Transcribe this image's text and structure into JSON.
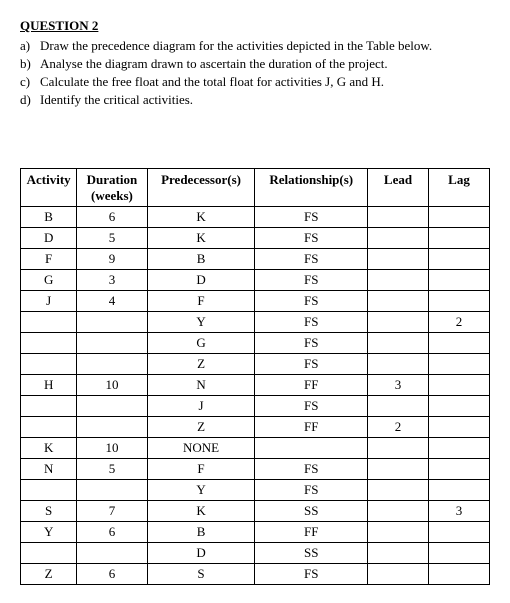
{
  "question": {
    "title": "QUESTION 2",
    "items": [
      {
        "letter": "a)",
        "text": "Draw the precedence diagram for the activities depicted in the Table below."
      },
      {
        "letter": "b)",
        "text": "Analyse the diagram drawn to ascertain the duration of the project."
      },
      {
        "letter": "c)",
        "text": "Calculate the free float and the total float for activities J, G and H."
      },
      {
        "letter": "d)",
        "text": "Identify the critical activities."
      }
    ]
  },
  "table": {
    "headers": {
      "activity": "Activity",
      "duration": "Duration (weeks)",
      "predecessor": "Predecessor(s)",
      "relationship": "Relationship(s)",
      "lead": "Lead",
      "lag": "Lag"
    },
    "rows": [
      {
        "activity": "B",
        "duration": "6",
        "predecessor": "K",
        "relationship": "FS",
        "lead": "",
        "lag": ""
      },
      {
        "activity": "D",
        "duration": "5",
        "predecessor": "K",
        "relationship": "FS",
        "lead": "",
        "lag": ""
      },
      {
        "activity": "F",
        "duration": "9",
        "predecessor": "B",
        "relationship": "FS",
        "lead": "",
        "lag": ""
      },
      {
        "activity": "G",
        "duration": "3",
        "predecessor": "D",
        "relationship": "FS",
        "lead": "",
        "lag": ""
      },
      {
        "activity": "J",
        "duration": "4",
        "predecessor": "F",
        "relationship": "FS",
        "lead": "",
        "lag": ""
      },
      {
        "activity": "",
        "duration": "",
        "predecessor": "Y",
        "relationship": "FS",
        "lead": "",
        "lag": "2"
      },
      {
        "activity": "",
        "duration": "",
        "predecessor": "G",
        "relationship": "FS",
        "lead": "",
        "lag": ""
      },
      {
        "activity": "",
        "duration": "",
        "predecessor": "Z",
        "relationship": "FS",
        "lead": "",
        "lag": ""
      },
      {
        "activity": "H",
        "duration": "10",
        "predecessor": "N",
        "relationship": "FF",
        "lead": "3",
        "lag": ""
      },
      {
        "activity": "",
        "duration": "",
        "predecessor": "J",
        "relationship": "FS",
        "lead": "",
        "lag": ""
      },
      {
        "activity": "",
        "duration": "",
        "predecessor": "Z",
        "relationship": "FF",
        "lead": "2",
        "lag": ""
      },
      {
        "activity": "K",
        "duration": "10",
        "predecessor": "NONE",
        "relationship": "",
        "lead": "",
        "lag": ""
      },
      {
        "activity": "N",
        "duration": "5",
        "predecessor": "F",
        "relationship": "FS",
        "lead": "",
        "lag": ""
      },
      {
        "activity": "",
        "duration": "",
        "predecessor": "Y",
        "relationship": "FS",
        "lead": "",
        "lag": ""
      },
      {
        "activity": "S",
        "duration": "7",
        "predecessor": "K",
        "relationship": "SS",
        "lead": "",
        "lag": "3"
      },
      {
        "activity": "Y",
        "duration": "6",
        "predecessor": "B",
        "relationship": "FF",
        "lead": "",
        "lag": ""
      },
      {
        "activity": "",
        "duration": "",
        "predecessor": "D",
        "relationship": "SS",
        "lead": "",
        "lag": ""
      },
      {
        "activity": "Z",
        "duration": "6",
        "predecessor": "S",
        "relationship": "FS",
        "lead": "",
        "lag": ""
      }
    ]
  }
}
